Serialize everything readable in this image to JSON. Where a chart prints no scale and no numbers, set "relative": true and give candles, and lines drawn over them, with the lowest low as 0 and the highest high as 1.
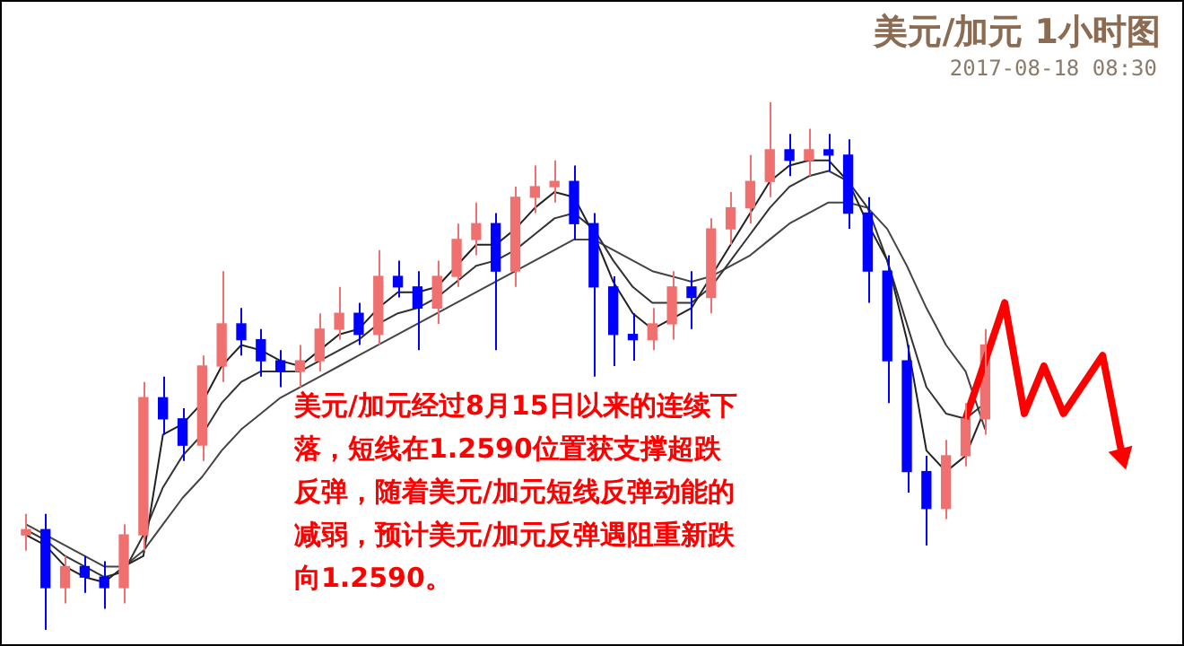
{
  "chart_data": {
    "type": "candlestick",
    "title": "美元/加元 1小时图",
    "subtitle": "2017-08-18 08:30",
    "annotations": [
      "美元/加元经过8月15日以来的连续下落，短线在1.2590位置获支撑超跌反弹，随着美元/加元短线反弹动能的减弱，预计美元/加元反弹遇阻重新跌向1.2590。"
    ],
    "relative": true,
    "categories": [
      null,
      null,
      null,
      null,
      null,
      null,
      null,
      null,
      null,
      null,
      null,
      null,
      null,
      null,
      null,
      null,
      null,
      null,
      null,
      null,
      null,
      null,
      null,
      null,
      null,
      null,
      null,
      null,
      null,
      null,
      null,
      null,
      null,
      null,
      null,
      null,
      null,
      null,
      null,
      null,
      null,
      null,
      null,
      null,
      null,
      null,
      null,
      null,
      null,
      null,
      null,
      null,
      null,
      null,
      null,
      null,
      null
    ],
    "ohlc": [
      [
        0.18,
        0.22,
        0.15,
        0.19
      ],
      [
        0.19,
        0.22,
        0,
        0.08
      ],
      [
        0.08,
        0.14,
        0.05,
        0.12
      ],
      [
        0.12,
        0.14,
        0.07,
        0.1
      ],
      [
        0.1,
        0.13,
        0.04,
        0.08
      ],
      [
        0.08,
        0.2,
        0.05,
        0.18
      ],
      [
        0.18,
        0.47,
        0.15,
        0.44
      ],
      [
        0.44,
        0.48,
        0.37,
        0.4
      ],
      [
        0.4,
        0.42,
        0.32,
        0.35
      ],
      [
        0.35,
        0.52,
        0.32,
        0.5
      ],
      [
        0.5,
        0.68,
        0.47,
        0.58
      ],
      [
        0.58,
        0.61,
        0.52,
        0.55
      ],
      [
        0.55,
        0.57,
        0.48,
        0.51
      ],
      [
        0.51,
        0.53,
        0.46,
        0.49
      ],
      [
        0.49,
        0.54,
        0.46,
        0.51
      ],
      [
        0.51,
        0.6,
        0.49,
        0.57
      ],
      [
        0.57,
        0.65,
        0.55,
        0.6
      ],
      [
        0.6,
        0.62,
        0.54,
        0.56
      ],
      [
        0.56,
        0.72,
        0.54,
        0.67
      ],
      [
        0.67,
        0.7,
        0.63,
        0.65
      ],
      [
        0.65,
        0.68,
        0.53,
        0.61
      ],
      [
        0.61,
        0.7,
        0.58,
        0.67
      ],
      [
        0.67,
        0.77,
        0.65,
        0.74
      ],
      [
        0.74,
        0.81,
        0.71,
        0.77
      ],
      [
        0.77,
        0.79,
        0.53,
        0.68
      ],
      [
        0.68,
        0.84,
        0.65,
        0.82
      ],
      [
        0.82,
        0.88,
        0.79,
        0.84
      ],
      [
        0.84,
        0.89,
        0.81,
        0.85
      ],
      [
        0.85,
        0.88,
        0.74,
        0.77
      ],
      [
        0.77,
        0.79,
        0.48,
        0.65
      ],
      [
        0.65,
        0.67,
        0.5,
        0.56
      ],
      [
        0.56,
        0.6,
        0.51,
        0.55
      ],
      [
        0.55,
        0.61,
        0.53,
        0.58
      ],
      [
        0.58,
        0.68,
        0.55,
        0.65
      ],
      [
        0.65,
        0.68,
        0.57,
        0.63
      ],
      [
        0.63,
        0.78,
        0.6,
        0.76
      ],
      [
        0.76,
        0.83,
        0.73,
        0.8
      ],
      [
        0.8,
        0.9,
        0.77,
        0.85
      ],
      [
        0.85,
        1,
        0.82,
        0.91
      ],
      [
        0.91,
        0.94,
        0.86,
        0.89
      ],
      [
        0.89,
        0.95,
        0.86,
        0.91
      ],
      [
        0.91,
        0.94,
        0.87,
        0.9
      ],
      [
        0.9,
        0.93,
        0.76,
        0.79
      ],
      [
        0.79,
        0.82,
        0.62,
        0.68
      ],
      [
        0.68,
        0.71,
        0.43,
        0.51
      ],
      [
        0.51,
        0.54,
        0.26,
        0.3
      ],
      [
        0.3,
        0.33,
        0.16,
        0.23
      ],
      [
        0.23,
        0.36,
        0.21,
        0.33
      ],
      [
        0.33,
        0.43,
        0.31,
        0.4
      ],
      [
        0.4,
        0.57,
        0.37,
        0.54
      ],
      null,
      null,
      null,
      null,
      null,
      null,
      null
    ],
    "colors": [
      "#f07070",
      "#0000ff",
      "#f07070",
      "#0000ff",
      "#0000ff",
      "#f07070",
      "#f07070",
      "#0000ff",
      "#0000ff",
      "#f07070",
      "#f07070",
      "#0000ff",
      "#0000ff",
      "#0000ff",
      "#f07070",
      "#f07070",
      "#f07070",
      "#0000ff",
      "#f07070",
      "#0000ff",
      "#0000ff",
      "#f07070",
      "#f07070",
      "#f07070",
      "#0000ff",
      "#f07070",
      "#f07070",
      "#f07070",
      "#0000ff",
      "#0000ff",
      "#0000ff",
      "#0000ff",
      "#f07070",
      "#f07070",
      "#0000ff",
      "#f07070",
      "#f07070",
      "#f07070",
      "#f07070",
      "#0000ff",
      "#f07070",
      "#0000ff",
      "#0000ff",
      "#0000ff",
      "#0000ff",
      "#0000ff",
      "#0000ff",
      "#f07070",
      "#f07070",
      "#f07070",
      null,
      null,
      null,
      null,
      null,
      null,
      null
    ],
    "series": [
      {
        "type": "line",
        "color": "#222222",
        "values": [
          0.18,
          0.16,
          0.12,
          0.1,
          0.09,
          0.12,
          0.14,
          0.37,
          0.39,
          0.43,
          0.5,
          0.54,
          0.53,
          0.51,
          0.5,
          0.53,
          0.56,
          0.57,
          0.61,
          0.64,
          0.64,
          0.65,
          0.69,
          0.73,
          0.73,
          0.76,
          0.8,
          0.83,
          0.82,
          0.75,
          0.66,
          0.6,
          0.57,
          0.59,
          0.61,
          0.67,
          0.73,
          0.79,
          0.85,
          0.88,
          0.89,
          0.89,
          0.85,
          0.77,
          0.7,
          0.55,
          0.34,
          0.3,
          0.33,
          0.42,
          null,
          null,
          null,
          null,
          null,
          null,
          null
        ]
      },
      {
        "type": "line",
        "color": "#333333",
        "values": [
          0.19,
          0.17,
          0.14,
          0.12,
          0.1,
          0.11,
          0.18,
          0.27,
          0.33,
          0.37,
          0.43,
          0.47,
          0.49,
          0.49,
          0.49,
          0.51,
          0.53,
          0.55,
          0.58,
          0.6,
          0.61,
          0.63,
          0.66,
          0.69,
          0.7,
          0.72,
          0.75,
          0.78,
          0.79,
          0.76,
          0.7,
          0.65,
          0.62,
          0.62,
          0.62,
          0.65,
          0.7,
          0.75,
          0.8,
          0.84,
          0.86,
          0.87,
          0.85,
          0.8,
          0.7,
          0.58,
          0.46,
          0.41,
          0.4,
          0.43,
          null,
          null,
          null,
          null,
          null,
          null,
          null
        ]
      },
      {
        "type": "line",
        "color": "#444444",
        "values": [
          0.2,
          0.18,
          0.16,
          0.14,
          0.12,
          0.12,
          0.15,
          0.2,
          0.25,
          0.29,
          0.34,
          0.38,
          0.41,
          0.44,
          0.46,
          0.48,
          0.5,
          0.52,
          0.54,
          0.56,
          0.58,
          0.6,
          0.62,
          0.64,
          0.66,
          0.68,
          0.7,
          0.72,
          0.74,
          0.74,
          0.72,
          0.7,
          0.68,
          0.67,
          0.66,
          0.67,
          0.69,
          0.71,
          0.74,
          0.77,
          0.79,
          0.81,
          0.81,
          0.8,
          0.76,
          0.69,
          0.61,
          0.54,
          0.49,
          0.38,
          null,
          null,
          null,
          null,
          null,
          null,
          null
        ]
      },
      {
        "type": "line",
        "color": "#ff0000",
        "values": [
          null,
          null,
          null,
          null,
          null,
          null,
          null,
          null,
          null,
          null,
          null,
          null,
          null,
          null,
          null,
          null,
          null,
          null,
          null,
          null,
          null,
          null,
          null,
          null,
          null,
          null,
          null,
          null,
          null,
          null,
          null,
          null,
          null,
          null,
          null,
          null,
          null,
          null,
          null,
          null,
          null,
          null,
          null,
          null,
          null,
          null,
          null,
          null,
          0.4,
          null,
          0.62,
          0.41,
          0.5,
          0.41,
          null,
          0.52,
          0.33
        ]
      }
    ]
  }
}
